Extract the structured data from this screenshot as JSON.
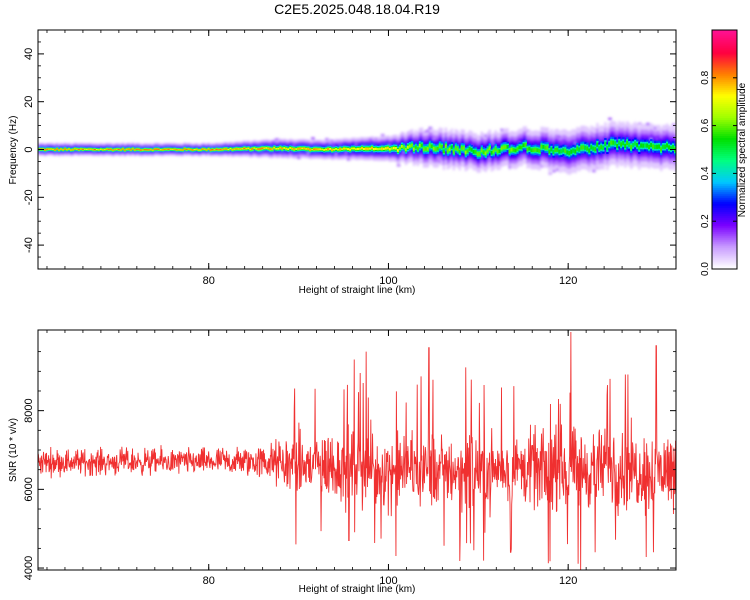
{
  "title": "C2E5.2025.048.18.04.R19",
  "chart_data": [
    {
      "type": "heatmap",
      "title": "C2E5.2025.048.18.04.R19",
      "xlabel": "Height of straight line (km)",
      "ylabel": "Frequency (Hz)",
      "xlim": [
        61,
        132
      ],
      "ylim": [
        -50,
        50
      ],
      "x_ticks": [
        "80",
        "100",
        "120"
      ],
      "y_ticks": [
        "-40",
        "-20",
        "0",
        "20",
        "40"
      ],
      "colorbar": {
        "label": "Normalized spectral amplitude",
        "range": [
          0,
          1
        ],
        "ticks": [
          "0.0",
          "0.2",
          "0.4",
          "0.6",
          "0.8"
        ],
        "colors": [
          "#ffffff",
          "#c89bff",
          "#7a00ff",
          "#0000ff",
          "#00c8ff",
          "#00ff80",
          "#00e000",
          "#a0ff00",
          "#ffff00",
          "#ff8000",
          "#ff0040",
          "#ff1090"
        ]
      },
      "ridge": {
        "description_x": [
          62,
          70,
          80,
          88,
          92,
          100,
          104,
          110,
          115,
          120,
          125,
          130,
          132
        ],
        "center_freq": [
          0,
          0,
          0,
          0.5,
          0,
          0.5,
          1,
          -1,
          1,
          -0.5,
          2,
          1,
          1
        ],
        "half_width_hz": [
          1,
          1,
          1,
          1.5,
          1.5,
          2,
          3,
          3,
          3,
          3.5,
          3.5,
          3.5,
          3.5
        ],
        "peak_amplitude": [
          0.95,
          0.95,
          0.95,
          0.9,
          0.9,
          0.85,
          0.7,
          0.7,
          0.7,
          0.65,
          0.65,
          0.65,
          0.65
        ]
      }
    },
    {
      "type": "line",
      "xlabel": "Height of straight line (km)",
      "ylabel": "SNR (10 * v/v)",
      "xlim": [
        61,
        132
      ],
      "ylim": [
        3950,
        10050
      ],
      "x_ticks": [
        "80",
        "100",
        "120"
      ],
      "y_ticks": [
        "4000",
        "6000",
        "8000"
      ],
      "series": [
        {
          "color": "#f03030",
          "envelope_x": [
            61,
            70,
            80,
            86,
            90,
            95,
            100,
            105,
            110,
            115,
            120,
            125,
            130,
            132
          ],
          "mean": [
            6700,
            6700,
            6700,
            6700,
            6600,
            6600,
            6500,
            6500,
            6500,
            6500,
            6500,
            6500,
            6500,
            6500
          ],
          "amplitude": [
            350,
            350,
            350,
            450,
            900,
            1000,
            1000,
            1000,
            1000,
            1000,
            1050,
            1050,
            1050,
            1050
          ],
          "spikes": [
            {
              "x": 89.7,
              "y": 4600
            },
            {
              "x": 95.6,
              "y": 4700
            },
            {
              "x": 96.2,
              "y": 9300
            },
            {
              "x": 97.5,
              "y": 9500
            },
            {
              "x": 104.5,
              "y": 9600
            },
            {
              "x": 108.6,
              "y": 9100
            },
            {
              "x": 113.6,
              "y": 4400
            },
            {
              "x": 120.3,
              "y": 10000
            },
            {
              "x": 121.4,
              "y": 3900
            },
            {
              "x": 123,
              "y": 4400
            },
            {
              "x": 129.5,
              "y": 4400
            },
            {
              "x": 129.8,
              "y": 9650
            }
          ]
        }
      ]
    }
  ]
}
